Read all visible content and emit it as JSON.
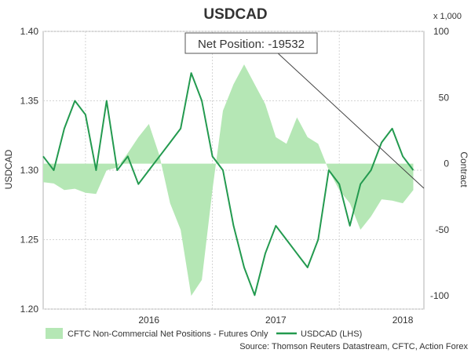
{
  "chart_data": {
    "type": "line",
    "title": "USDCAD",
    "left_axis": {
      "label": "USDCAD",
      "ylim": [
        1.2,
        1.4
      ],
      "ticks": [
        "1.20",
        "1.25",
        "1.30",
        "1.35",
        "1.40"
      ]
    },
    "right_axis": {
      "label": "Contract",
      "multiplier_label": "x 1,000",
      "ylim": [
        -110,
        100
      ],
      "ticks": [
        "-100",
        "-50",
        "0",
        "50",
        "100"
      ]
    },
    "x_axis": {
      "ticks": [
        "2016",
        "2017",
        "2018"
      ],
      "range": [
        "2015-09",
        "2018-09"
      ]
    },
    "grid": true,
    "annotation": {
      "text": "Net Position: -19532",
      "value": -19532
    },
    "legend": {
      "placement": "bottom",
      "items": [
        "CFTC Non-Commercial Net Positions - Futures Only",
        "USDCAD (LHS)"
      ]
    },
    "source": "Source: Thomson Reuters Datastream, CFTC, Action Forex",
    "series": [
      {
        "name": "CFTC Non-Commercial Net Positions - Futures Only",
        "kind": "area",
        "axis": "right",
        "color": "#b5e7b5",
        "points": [
          [
            "2015-09",
            -14
          ],
          [
            "2015-10",
            -15
          ],
          [
            "2015-11",
            -20
          ],
          [
            "2015-12",
            -19
          ],
          [
            "2016-01",
            -22
          ],
          [
            "2016-02",
            -23
          ],
          [
            "2016-03",
            -5
          ],
          [
            "2016-04",
            -3
          ],
          [
            "2016-05",
            8
          ],
          [
            "2016-06",
            20
          ],
          [
            "2016-07",
            30
          ],
          [
            "2016-08",
            6
          ],
          [
            "2016-09",
            -30
          ],
          [
            "2016-10",
            -50
          ],
          [
            "2016-11",
            -100
          ],
          [
            "2016-12",
            -88
          ],
          [
            "2017-01",
            -20
          ],
          [
            "2017-02",
            40
          ],
          [
            "2017-03",
            60
          ],
          [
            "2017-04",
            75
          ],
          [
            "2017-05",
            60
          ],
          [
            "2017-06",
            45
          ],
          [
            "2017-07",
            20
          ],
          [
            "2017-08",
            15
          ],
          [
            "2017-09",
            35
          ],
          [
            "2017-10",
            20
          ],
          [
            "2017-11",
            15
          ],
          [
            "2017-12",
            -5
          ],
          [
            "2018-01",
            -20
          ],
          [
            "2018-02",
            -30
          ],
          [
            "2018-03",
            -50
          ],
          [
            "2018-04",
            -40
          ],
          [
            "2018-05",
            -27
          ],
          [
            "2018-06",
            -28
          ],
          [
            "2018-07",
            -30
          ],
          [
            "2018-08",
            -20
          ]
        ]
      },
      {
        "name": "USDCAD (LHS)",
        "kind": "line",
        "axis": "left",
        "color": "#239a4f",
        "points": [
          [
            "2015-09",
            1.31
          ],
          [
            "2015-10",
            1.3
          ],
          [
            "2015-11",
            1.33
          ],
          [
            "2015-12",
            1.35
          ],
          [
            "2016-01",
            1.34
          ],
          [
            "2016-02",
            1.3
          ],
          [
            "2016-03",
            1.35
          ],
          [
            "2016-04",
            1.3
          ],
          [
            "2016-05",
            1.31
          ],
          [
            "2016-06",
            1.29
          ],
          [
            "2016-07",
            1.3
          ],
          [
            "2016-08",
            1.31
          ],
          [
            "2016-09",
            1.32
          ],
          [
            "2016-10",
            1.33
          ],
          [
            "2016-11",
            1.37
          ],
          [
            "2016-12",
            1.35
          ],
          [
            "2017-01",
            1.31
          ],
          [
            "2017-02",
            1.3
          ],
          [
            "2017-03",
            1.26
          ],
          [
            "2017-04",
            1.23
          ],
          [
            "2017-05",
            1.21
          ],
          [
            "2017-06",
            1.24
          ],
          [
            "2017-07",
            1.26
          ],
          [
            "2017-08",
            1.25
          ],
          [
            "2017-09",
            1.24
          ],
          [
            "2017-10",
            1.23
          ],
          [
            "2017-11",
            1.25
          ],
          [
            "2017-12",
            1.3
          ],
          [
            "2018-01",
            1.29
          ],
          [
            "2018-02",
            1.26
          ],
          [
            "2018-03",
            1.29
          ],
          [
            "2018-04",
            1.3
          ],
          [
            "2018-05",
            1.32
          ],
          [
            "2018-06",
            1.33
          ],
          [
            "2018-07",
            1.31
          ],
          [
            "2018-08",
            1.3
          ]
        ]
      }
    ]
  }
}
